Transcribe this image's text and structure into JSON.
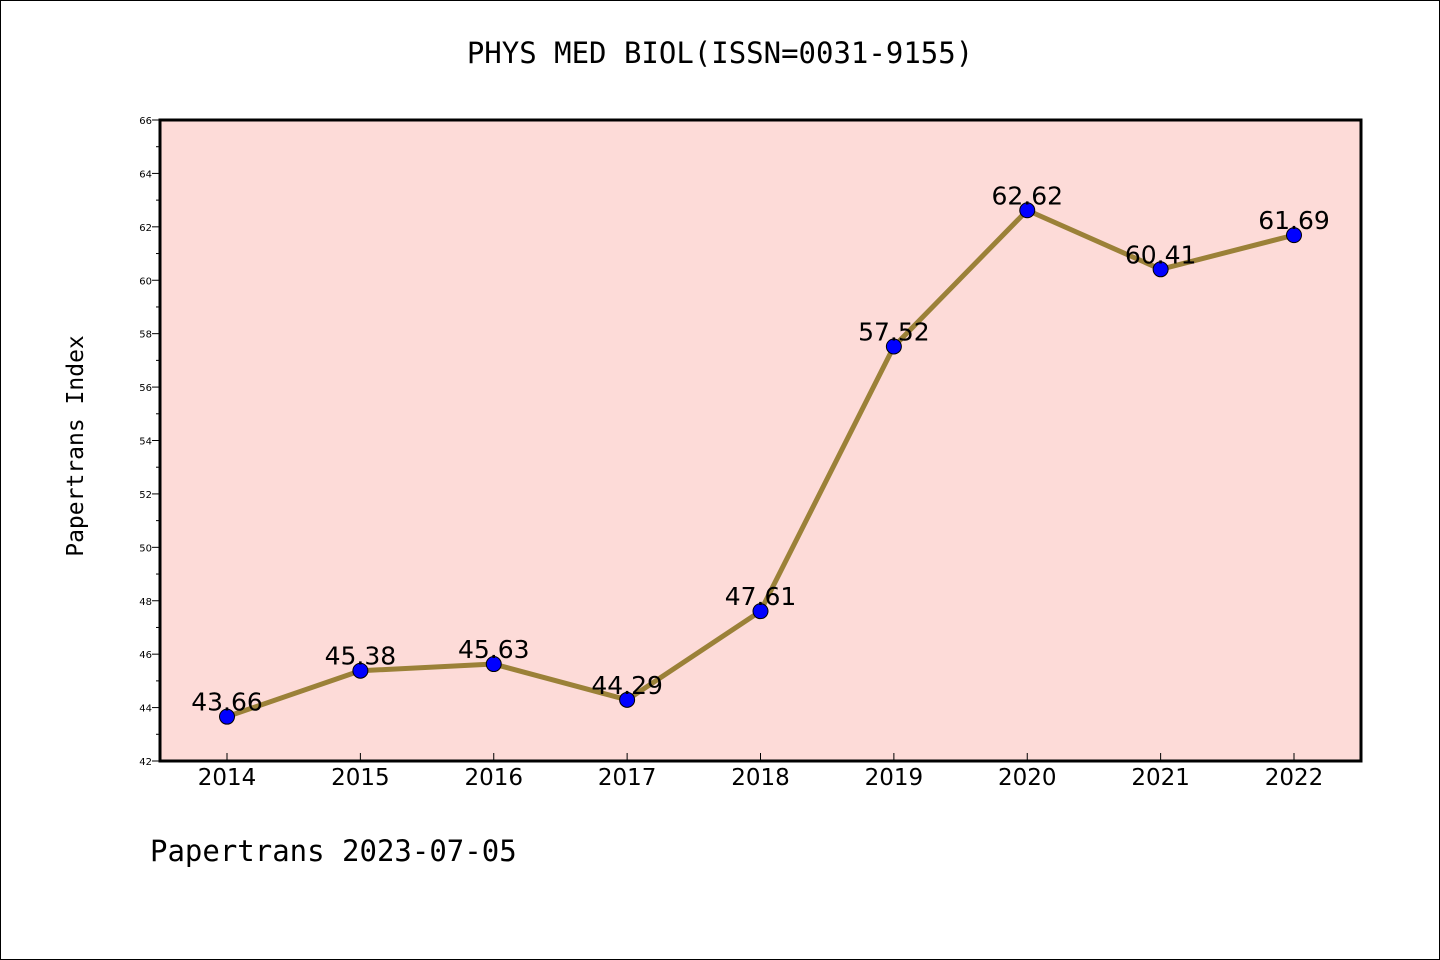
{
  "chart_data": {
    "type": "line",
    "title": "PHYS MED BIOL(ISSN=0031-9155)",
    "xlabel": "",
    "ylabel": "Papertrans Index",
    "categories": [
      "2014",
      "2015",
      "2016",
      "2017",
      "2018",
      "2019",
      "2020",
      "2021",
      "2022"
    ],
    "values": [
      43.66,
      45.38,
      45.63,
      44.29,
      47.61,
      57.52,
      62.62,
      60.41,
      61.69
    ],
    "data_labels": [
      "43.66",
      "45.38",
      "45.63",
      "44.29",
      "47.61",
      "57.52",
      "62.62",
      "60.41",
      "61.69"
    ],
    "ylim": [
      42,
      66
    ],
    "yticks": [
      42,
      44,
      46,
      48,
      50,
      52,
      54,
      56,
      58,
      60,
      62,
      64,
      66
    ],
    "ytick_labels": [
      "42",
      "44",
      "46",
      "48",
      "50",
      "52",
      "54",
      "56",
      "58",
      "60",
      "62",
      "64",
      "66"
    ],
    "grid": false,
    "colors": {
      "plot_background": "#fddbd8",
      "line": "#9b8138",
      "marker": "#0000ff"
    }
  },
  "footer": "Papertrans 2023-07-05"
}
